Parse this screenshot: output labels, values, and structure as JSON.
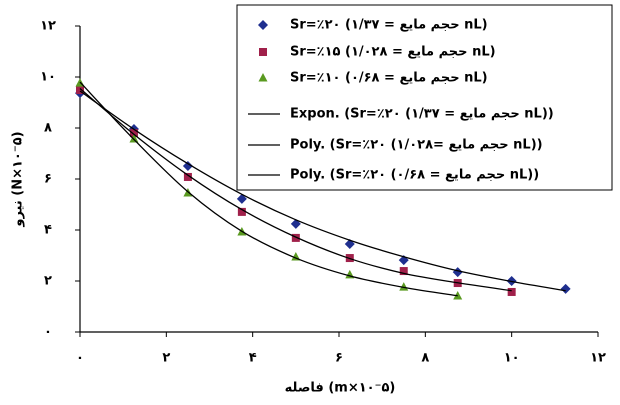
{
  "chart_data": {
    "type": "scatter",
    "x_label": "فاصله (m×۱۰⁻۵)",
    "y_label": "نیرو (N×۱۰⁻۵)",
    "xlim": [
      0,
      12
    ],
    "ylim": [
      0,
      12
    ],
    "xticks": [
      {
        "value": 0,
        "label": "۰"
      },
      {
        "value": 2,
        "label": "۲"
      },
      {
        "value": 4,
        "label": "۴"
      },
      {
        "value": 6,
        "label": "۶"
      },
      {
        "value": 8,
        "label": "۸"
      },
      {
        "value": 10,
        "label": "۱۰"
      },
      {
        "value": 12,
        "label": "۱۲"
      }
    ],
    "yticks": [
      {
        "value": 0,
        "label": "۰"
      },
      {
        "value": 2,
        "label": "۲"
      },
      {
        "value": 4,
        "label": "۴"
      },
      {
        "value": 6,
        "label": "۶"
      },
      {
        "value": 8,
        "label": "۸"
      },
      {
        "value": 10,
        "label": "۱۰"
      },
      {
        "value": 12,
        "label": "۱۲"
      }
    ],
    "grid": false,
    "legend": "top-right",
    "series": [
      {
        "name": "Sr=٪۲۰ (حجم مایع = ۱/۳۷ nL)",
        "color": "#1f2f8f",
        "marker": "diamond",
        "x": [
          0,
          1.25,
          2.5,
          3.75,
          5,
          6.25,
          7.5,
          8.75,
          10,
          11.25
        ],
        "values": [
          9.37,
          7.96,
          6.51,
          5.22,
          4.24,
          3.45,
          2.82,
          2.35,
          2.0,
          1.69
        ]
      },
      {
        "name": "Sr=٪۱۵ (حجم مایع = ۱/۰۲۸ nL)",
        "color": "#a0204a",
        "marker": "square",
        "x": [
          0,
          1.25,
          2.5,
          3.75,
          5,
          6.25,
          7.5,
          8.75,
          10
        ],
        "values": [
          9.49,
          7.8,
          6.08,
          4.71,
          3.69,
          2.9,
          2.39,
          1.92,
          1.57
        ]
      },
      {
        "name": "Sr=٪۱۰ (حجم مایع = ۰/۶۸ nL)",
        "color": "#5a9a20",
        "marker": "triangle",
        "x": [
          0,
          1.25,
          2.5,
          3.75,
          5,
          6.25,
          7.5,
          8.75
        ],
        "values": [
          9.76,
          7.57,
          5.45,
          3.92,
          2.94,
          2.24,
          1.76,
          1.41
        ]
      },
      {
        "name": "Expon. (Sr=٪۲۰ (حجم مایع = ۱/۳۷ nL))",
        "color": "#000000",
        "marker": "line",
        "x": [
          0,
          1.25,
          2.5,
          3.75,
          5,
          6.25,
          7.5,
          8.75,
          10,
          11.25
        ],
        "values": [
          9.45,
          7.95,
          6.6,
          5.4,
          4.4,
          3.6,
          2.95,
          2.4,
          1.98,
          1.62
        ]
      },
      {
        "name": "Poly. (Sr=٪۲۰ (حجم مایع =۱/۰۲۸ nL))",
        "color": "#000000",
        "marker": "line",
        "x": [
          0,
          1.25,
          2.5,
          3.75,
          5,
          6.25,
          7.5,
          8.75,
          10
        ],
        "values": [
          9.55,
          7.75,
          6.15,
          4.8,
          3.72,
          2.88,
          2.3,
          1.93,
          1.62
        ]
      },
      {
        "name": "Poly. (Sr=٪۲۰ (حجم مایع = ۰/۶۸ nL))",
        "color": "#000000",
        "marker": "line",
        "x": [
          0,
          1.25,
          2.5,
          3.75,
          5,
          6.25,
          7.5,
          8.75
        ],
        "values": [
          9.8,
          7.55,
          5.5,
          3.95,
          2.9,
          2.2,
          1.75,
          1.42
        ]
      }
    ]
  }
}
